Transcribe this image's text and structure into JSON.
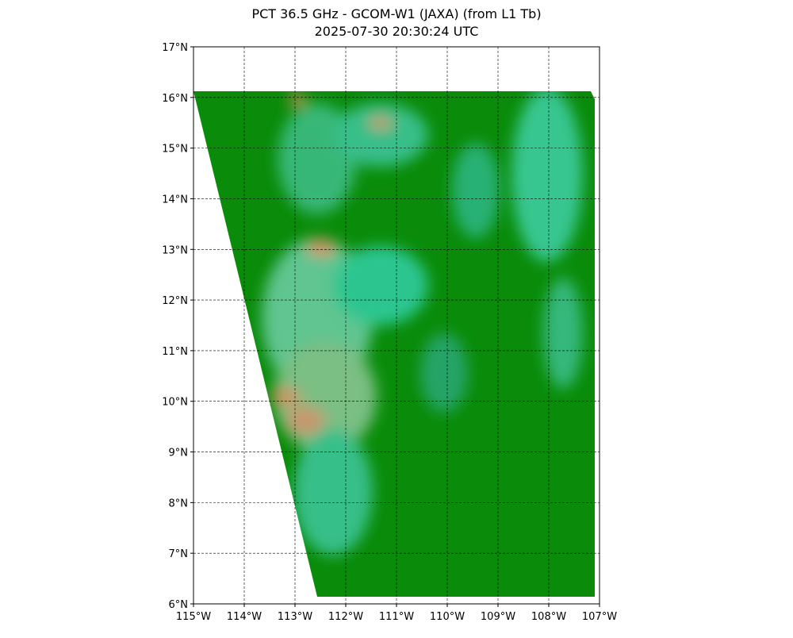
{
  "chart_data": {
    "type": "map",
    "title": "PCT 36.5 GHz - GCOM-W1 (JAXA) (from L1 Tb)",
    "subtitle": "2025-07-30 20:30:24 UTC",
    "xlim": [
      -115,
      -107
    ],
    "ylim": [
      6,
      17
    ],
    "xticks": [
      {
        "value": -115,
        "label": "115°W"
      },
      {
        "value": -114,
        "label": "114°W"
      },
      {
        "value": -113,
        "label": "113°W"
      },
      {
        "value": -112,
        "label": "112°W"
      },
      {
        "value": -111,
        "label": "111°W"
      },
      {
        "value": -110,
        "label": "110°W"
      },
      {
        "value": -109,
        "label": "109°W"
      },
      {
        "value": -108,
        "label": "108°W"
      },
      {
        "value": -107,
        "label": "107°W"
      }
    ],
    "yticks": [
      {
        "value": 6,
        "label": "6°N"
      },
      {
        "value": 7,
        "label": "7°N"
      },
      {
        "value": 8,
        "label": "8°N"
      },
      {
        "value": 9,
        "label": "9°N"
      },
      {
        "value": 10,
        "label": "10°N"
      },
      {
        "value": 11,
        "label": "11°N"
      },
      {
        "value": 12,
        "label": "12°N"
      },
      {
        "value": 13,
        "label": "13°N"
      },
      {
        "value": 14,
        "label": "14°N"
      },
      {
        "value": 15,
        "label": "15°N"
      },
      {
        "value": 16,
        "label": "16°N"
      },
      {
        "value": 17,
        "label": "17°N"
      }
    ],
    "grid": true
  }
}
